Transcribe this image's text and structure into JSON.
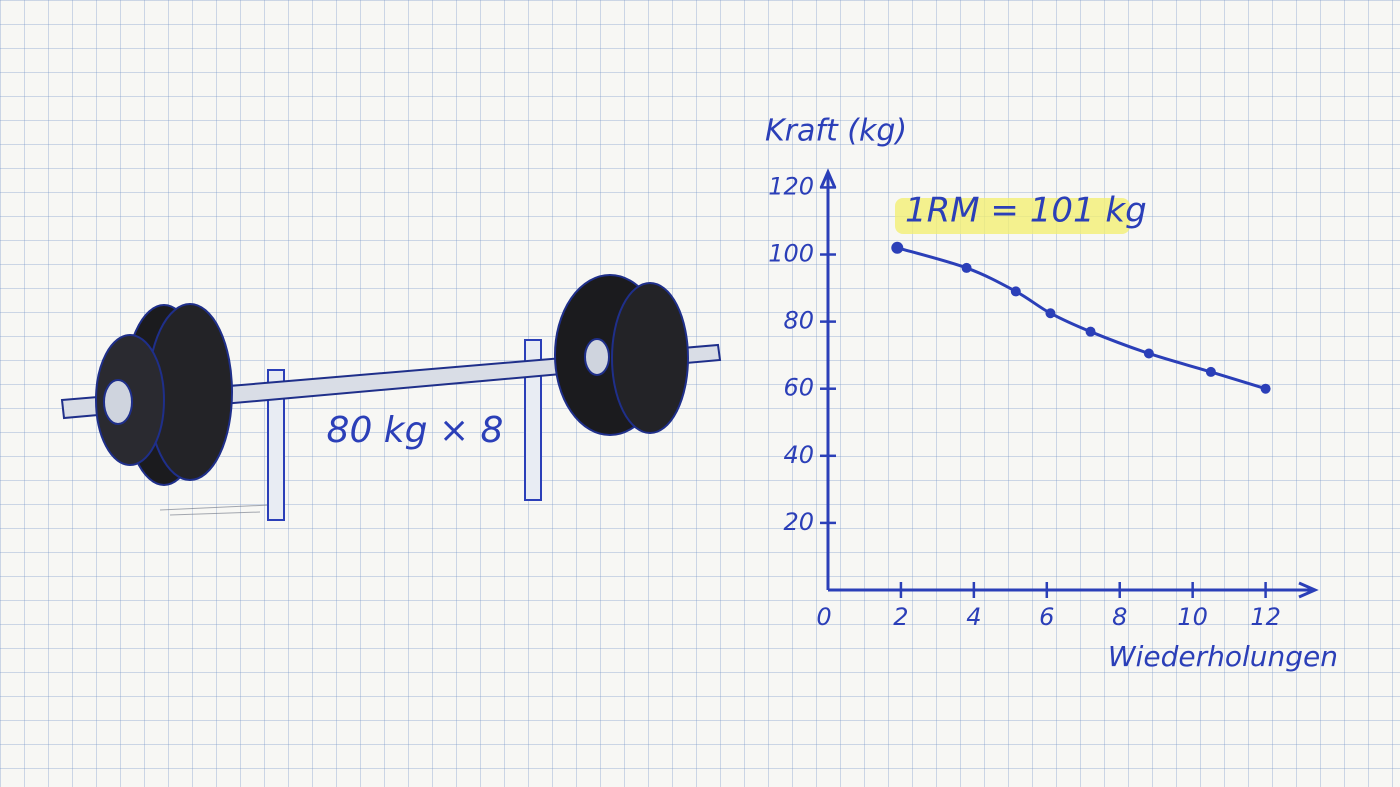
{
  "illustration": {
    "label": "80 kg × 8"
  },
  "chart_data": {
    "type": "line",
    "y_label": "Kraft (kg)",
    "x_label": "Wiederholungen",
    "annotation": "1RM = 101 kg",
    "x": [
      1.9,
      3.8,
      5.15,
      6.1,
      7.2,
      8.8,
      10.5,
      12
    ],
    "series": [
      {
        "color": "#2b3fb8",
        "values": [
          102,
          96,
          89,
          82.5,
          77,
          70.5,
          65,
          60
        ]
      }
    ],
    "xlim": [
      0,
      13.3
    ],
    "ylim": [
      0,
      124
    ],
    "xticks": [
      0,
      2,
      4,
      6,
      8,
      10,
      12
    ],
    "yticks": [
      20,
      40,
      60,
      80,
      100,
      120
    ]
  }
}
